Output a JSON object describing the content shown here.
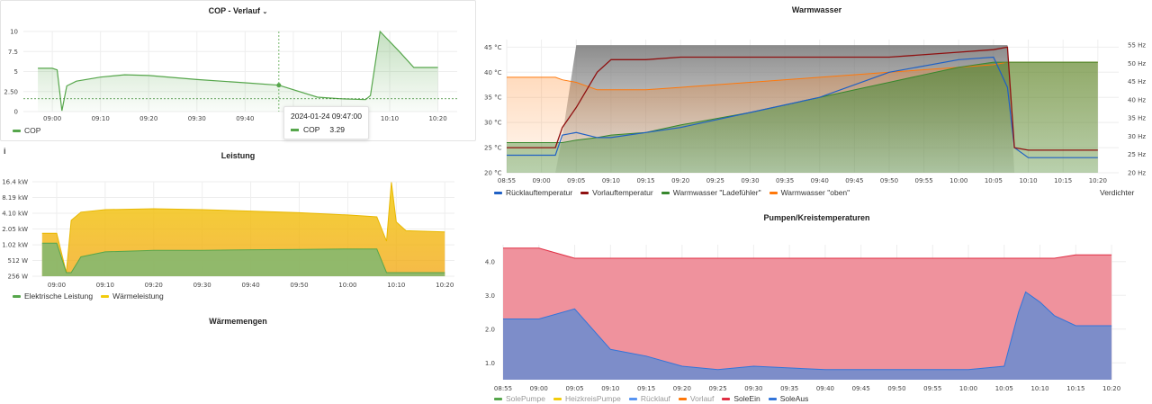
{
  "panels": {
    "cop": {
      "title": "COP - Verlauf",
      "chevron": "chevron-down-icon",
      "y_ticks": [
        "10",
        "7.5",
        "5",
        "2.50",
        "0"
      ],
      "x_ticks": [
        "09:00",
        "09:10",
        "09:20",
        "09:30",
        "09:40",
        "09:50",
        "10:00",
        "10:10",
        "10:20"
      ],
      "legend": [
        {
          "name": "COP",
          "color": "#56a64b"
        }
      ],
      "tooltip": {
        "time": "2024-01-24 09:47:00",
        "series": "COP",
        "value": "3.29"
      }
    },
    "leistung": {
      "title": "Leistung",
      "info_icon": "info-icon",
      "info_glyph": "i",
      "y_ticks": [
        "16.4 kW",
        "8.19 kW",
        "4.10 kW",
        "2.05 kW",
        "1.02 kW",
        "512 W",
        "256 W"
      ],
      "x_ticks": [
        "09:00",
        "09:10",
        "09:20",
        "09:30",
        "09:40",
        "09:50",
        "10:00",
        "10:10",
        "10:20"
      ],
      "legend": [
        {
          "name": "Elektrische Leistung",
          "color": "#56a64b"
        },
        {
          "name": "Wärmeleistung",
          "color": "#f2cc0c"
        }
      ]
    },
    "waermemengen": {
      "title": "Wärmemengen"
    },
    "warmwasser": {
      "title": "Warmwasser",
      "y_left": [
        "45 °C",
        "40 °C",
        "35 °C",
        "30 °C",
        "25 °C",
        "20 °C"
      ],
      "y_right": [
        "55 Hz",
        "50 Hz",
        "45 Hz",
        "40 Hz",
        "35 Hz",
        "30 Hz",
        "25 Hz",
        "20 Hz"
      ],
      "x_ticks": [
        "08:55",
        "09:00",
        "09:05",
        "09:10",
        "09:15",
        "09:20",
        "09:25",
        "09:30",
        "09:35",
        "09:40",
        "09:45",
        "09:50",
        "09:55",
        "10:00",
        "10:05",
        "10:10",
        "10:15",
        "10:20"
      ],
      "legend": [
        {
          "name": "Rücklauftemperatur",
          "color": "#1f60c4"
        },
        {
          "name": "Vorlauftemperatur",
          "color": "#8f1010"
        },
        {
          "name": "Warmwasser \"Ladefühler\"",
          "color": "#37872d"
        },
        {
          "name": "Warmwasser \"oben\"",
          "color": "#ff780a"
        }
      ],
      "legend_right": "Verdichter"
    },
    "pumpen": {
      "title": "Pumpen/Kreistemperaturen",
      "y_ticks": [
        "4.0",
        "3.0",
        "2.0",
        "1.0"
      ],
      "x_ticks": [
        "08:55",
        "09:00",
        "09:05",
        "09:10",
        "09:15",
        "09:20",
        "09:25",
        "09:30",
        "09:35",
        "09:40",
        "09:45",
        "09:50",
        "09:55",
        "10:00",
        "10:05",
        "10:10",
        "10:15",
        "10:20"
      ],
      "legend": [
        {
          "name": "SolePumpe",
          "color": "#56a64b",
          "dim": true
        },
        {
          "name": "HeizkreisPumpe",
          "color": "#f2cc0c",
          "dim": true
        },
        {
          "name": "Rücklauf",
          "color": "#5794f2",
          "dim": true
        },
        {
          "name": "Vorlauf",
          "color": "#ff780a",
          "dim": true
        },
        {
          "name": "SoleEin",
          "color": "#e02f44",
          "dim": false
        },
        {
          "name": "SoleAus",
          "color": "#3274d9",
          "dim": false
        }
      ]
    }
  },
  "chart_data": [
    {
      "type": "line",
      "title": "COP - Verlauf",
      "x": [
        "08:57",
        "09:00",
        "09:01",
        "09:02",
        "09:03",
        "09:05",
        "09:10",
        "09:15",
        "09:20",
        "09:30",
        "09:40",
        "09:47",
        "09:55",
        "10:00",
        "10:05",
        "10:06",
        "10:08",
        "10:12",
        "10:15",
        "10:20"
      ],
      "series": [
        {
          "name": "COP",
          "values": [
            5.4,
            5.4,
            5.2,
            0.1,
            3.2,
            3.8,
            4.3,
            4.6,
            4.5,
            4.0,
            3.6,
            3.29,
            1.8,
            1.6,
            1.5,
            2.0,
            10,
            7.5,
            5.5,
            5.5
          ]
        }
      ],
      "ylim": [
        0,
        10
      ]
    },
    {
      "type": "area",
      "title": "Leistung",
      "x": [
        "08:57",
        "09:00",
        "09:02",
        "09:03",
        "09:05",
        "09:10",
        "09:20",
        "09:30",
        "09:40",
        "09:50",
        "10:00",
        "10:06",
        "10:08",
        "10:09",
        "10:10",
        "10:12",
        "10:20"
      ],
      "series": [
        {
          "name": "Elektrische Leistung",
          "values": [
            1100,
            1100,
            300,
            300,
            600,
            750,
            800,
            800,
            820,
            830,
            850,
            850,
            300,
            300,
            300,
            300,
            300
          ]
        },
        {
          "name": "Wärmeleistung",
          "values": [
            1700,
            1700,
            300,
            3000,
            4300,
            4800,
            5000,
            4800,
            4500,
            4200,
            3800,
            3500,
            1200,
            16000,
            2800,
            1900,
            1800
          ]
        }
      ],
      "ylim": [
        256,
        16400
      ]
    },
    {
      "type": "line",
      "title": "Warmwasser",
      "x": [
        "08:55",
        "09:00",
        "09:02",
        "09:03",
        "09:05",
        "09:08",
        "09:10",
        "09:15",
        "09:20",
        "09:30",
        "09:40",
        "09:50",
        "10:00",
        "10:05",
        "10:07",
        "10:08",
        "10:10",
        "10:20"
      ],
      "series": [
        {
          "name": "Rücklauftemperatur",
          "values": [
            23.5,
            23.5,
            23.5,
            27.5,
            28,
            27,
            27,
            28,
            29,
            32,
            35,
            40,
            42.5,
            43,
            37,
            25,
            23,
            23
          ]
        },
        {
          "name": "Vorlauftemperatur",
          "values": [
            25,
            25,
            25,
            29,
            33,
            40,
            42.5,
            42.5,
            43,
            43,
            43,
            43,
            44,
            44.5,
            45,
            25,
            24.5,
            24.5
          ]
        },
        {
          "name": "Warmwasser \"Ladefühler\"",
          "values": [
            26,
            26,
            26,
            26,
            26.5,
            27,
            27.5,
            28,
            29.5,
            32,
            35,
            38,
            41,
            42,
            42,
            42,
            42,
            42
          ]
        },
        {
          "name": "Warmwasser \"oben\"",
          "values": [
            39,
            39,
            39,
            38.5,
            38,
            36.5,
            36.5,
            36.5,
            37,
            38,
            39,
            40,
            41,
            41.5,
            42,
            42,
            42,
            42
          ]
        },
        {
          "name": "Verdichter",
          "values": [
            20,
            20,
            20,
            30,
            55,
            55,
            55,
            55,
            55,
            55,
            55,
            55,
            55,
            55,
            55,
            20,
            20,
            20
          ]
        }
      ],
      "ylim": [
        20,
        45
      ],
      "y2lim": [
        20,
        55
      ]
    },
    {
      "type": "area",
      "title": "Pumpen/Kreistemperaturen",
      "x": [
        "08:55",
        "09:00",
        "09:05",
        "09:10",
        "09:15",
        "09:20",
        "09:25",
        "09:30",
        "09:40",
        "09:50",
        "10:00",
        "10:05",
        "10:07",
        "10:08",
        "10:10",
        "10:12",
        "10:15",
        "10:20"
      ],
      "series": [
        {
          "name": "SoleEin",
          "values": [
            4.4,
            4.4,
            4.1,
            4.1,
            4.1,
            4.1,
            4.1,
            4.1,
            4.1,
            4.1,
            4.1,
            4.1,
            4.1,
            4.1,
            4.1,
            4.1,
            4.2,
            4.2
          ]
        },
        {
          "name": "SoleAus",
          "values": [
            2.3,
            2.3,
            2.6,
            1.4,
            1.2,
            0.9,
            0.8,
            0.9,
            0.8,
            0.8,
            0.8,
            0.9,
            2.5,
            3.1,
            2.8,
            2.4,
            2.1,
            2.1
          ]
        }
      ],
      "ylim": [
        0.5,
        4.5
      ]
    }
  ]
}
